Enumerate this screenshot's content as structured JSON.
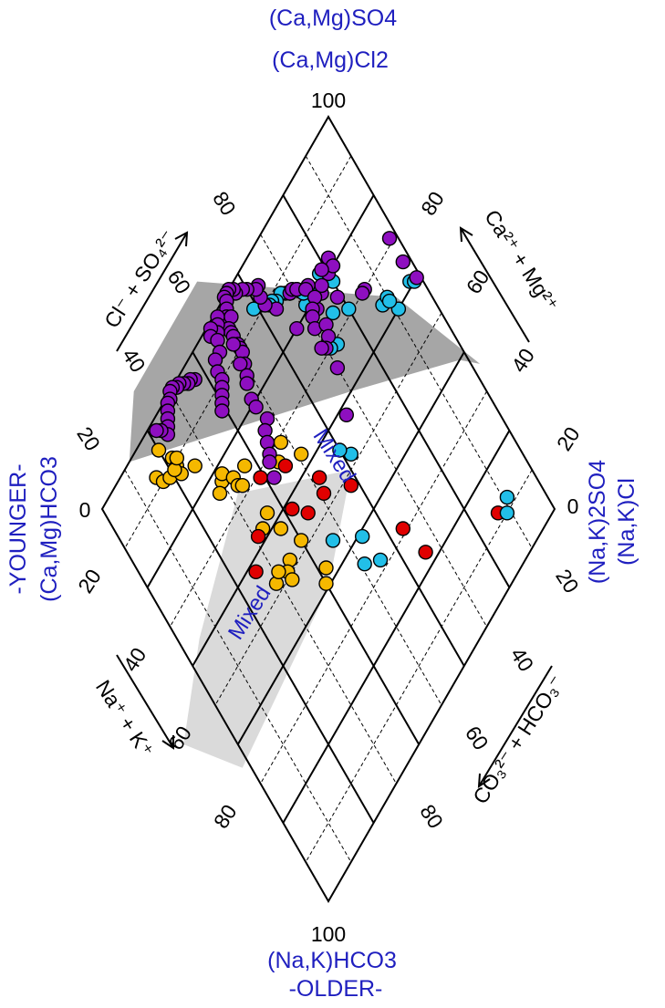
{
  "labels": {
    "top_line1": "(Ca,Mg)SO4",
    "top_line2": "(Ca,Mg)Cl2",
    "top_value": "100",
    "bottom_value": "100",
    "bottom_line1": "(Na,K)HCO3",
    "bottom_line2": "-OLDER-",
    "left_line1": "-YOUNGER-",
    "left_line2": "(Ca,Mg)HCO3",
    "left_value": "0",
    "right_line1": "(Na,K)2SO4",
    "right_line2": "(Na,K)Cl",
    "right_value": "0",
    "mixed_upper": "Mixed",
    "mixed_lower": "Mixed",
    "axis_upper_left": "Cl⁻ + SO₄²⁻",
    "axis_upper_right": "Ca²⁺ + Mg²⁺",
    "axis_lower_left": "Na⁺ + K⁺",
    "axis_lower_right": "CO₃²⁻ + HCO₃⁻",
    "ticks": [
      "20",
      "40",
      "60",
      "80"
    ]
  },
  "colors": {
    "red": "#e00000",
    "cyan": "#22bfe8",
    "yellow": "#f5b800",
    "purple": "#8e0fc0",
    "light_zone": "#dadada",
    "dark_zone": "#a6a6a6",
    "label_blue": "#1f1fbf"
  },
  "chart_data": {
    "type": "scatter",
    "diagram": "piper-diamond",
    "title": "",
    "axes": {
      "upper_left": {
        "label": "Cl⁻ + SO₄²⁻",
        "range": [
          0,
          100
        ]
      },
      "upper_right": {
        "label": "Ca²⁺ + Mg²⁺",
        "range": [
          0,
          100
        ]
      },
      "lower_left": {
        "label": "Na⁺ + K⁺",
        "range": [
          0,
          100
        ]
      },
      "lower_right": {
        "label": "CO₃²⁻ + HCO₃⁻",
        "range": [
          0,
          100
        ]
      }
    },
    "grid": true,
    "series": [
      {
        "color_key": "yellow",
        "points": [
          [
            5,
            80
          ],
          [
            8,
            84
          ],
          [
            10,
            83
          ],
          [
            11,
            81
          ],
          [
            9,
            78
          ],
          [
            11,
            78
          ],
          [
            13,
            78
          ],
          [
            15,
            74
          ],
          [
            11,
            79
          ],
          [
            10,
            77
          ],
          [
            23,
            70
          ],
          [
            24,
            72
          ],
          [
            22,
            69
          ],
          [
            25,
            67
          ],
          [
            27,
            67
          ],
          [
            26,
            63
          ],
          [
            28,
            66
          ],
          [
            37,
            64
          ],
          [
            38,
            67
          ],
          [
            42,
            63
          ],
          [
            31,
            52
          ],
          [
            33,
            55
          ],
          [
            37,
            49
          ],
          [
            48,
            65
          ],
          [
            49,
            67
          ],
          [
            48,
            71
          ],
          [
            47,
            69
          ],
          [
            51,
            67
          ],
          [
            48,
            60
          ],
          [
            57,
            58
          ],
          [
            59,
            60
          ]
        ]
      },
      {
        "color_key": "red",
        "points": [
          [
            88,
            13
          ],
          [
            77,
            34
          ],
          [
            69,
            36
          ],
          [
            52,
            42
          ],
          [
            44,
            48
          ],
          [
            47,
            49
          ],
          [
            46,
            55
          ],
          [
            42,
            58
          ],
          [
            35,
            54
          ],
          [
            31,
            61
          ],
          [
            38,
            69
          ],
          [
            42,
            74
          ]
        ]
      },
      {
        "color_key": "cyan",
        "points": [
          [
            88,
            9
          ],
          [
            90,
            11
          ],
          [
            55,
            53
          ],
          [
            68,
            45
          ],
          [
            65,
            49
          ],
          [
            61,
            46
          ],
          [
            48,
            38
          ],
          [
            45,
            40
          ],
          [
            31,
            27
          ],
          [
            30,
            29
          ],
          [
            36,
            12
          ],
          [
            36,
            10
          ],
          [
            40,
            9
          ],
          [
            39,
            3
          ],
          [
            40,
            2
          ],
          [
            37,
            10
          ],
          [
            29,
            20
          ],
          [
            22,
            20
          ],
          [
            26,
            24
          ],
          [
            18,
            22
          ],
          [
            18,
            26
          ],
          [
            19,
            29
          ],
          [
            17,
            28
          ],
          [
            15,
            29
          ],
          [
            14,
            31
          ],
          [
            13,
            32
          ],
          [
            12,
            33
          ],
          [
            12,
            35
          ],
          [
            11,
            36
          ],
          [
            11,
            37
          ],
          [
            10,
            38
          ],
          [
            9,
            39
          ],
          [
            8,
            41
          ]
        ]
      },
      {
        "color_key": "purple",
        "points": [
          [
            40,
            1
          ],
          [
            29,
            2
          ],
          [
            35,
            2
          ],
          [
            14,
            31
          ],
          [
            14,
            30
          ],
          [
            15,
            29
          ],
          [
            22,
            27
          ],
          [
            21,
            24
          ],
          [
            25,
            21
          ],
          [
            30,
            14
          ],
          [
            30,
            15
          ],
          [
            18,
            18
          ],
          [
            20,
            20
          ],
          [
            20,
            18
          ],
          [
            18,
            21
          ],
          [
            20,
            23
          ],
          [
            17,
            26
          ],
          [
            17,
            27
          ],
          [
            20,
            26
          ],
          [
            21,
            28
          ],
          [
            22,
            29
          ],
          [
            24,
            30
          ],
          [
            26,
            27
          ],
          [
            28,
            28
          ],
          [
            29,
            30
          ],
          [
            34,
            30
          ],
          [
            42,
            34
          ],
          [
            28,
            31
          ],
          [
            20,
            34
          ],
          [
            13,
            36
          ],
          [
            10,
            38
          ],
          [
            8,
            38
          ],
          [
            6,
            37
          ],
          [
            6,
            38
          ],
          [
            4,
            40
          ],
          [
            3,
            41
          ],
          [
            2,
            43
          ],
          [
            1,
            43
          ],
          [
            0,
            44
          ],
          [
            0,
            45
          ],
          [
            0,
            46
          ],
          [
            1,
            46
          ],
          [
            2,
            47
          ],
          [
            3,
            48
          ],
          [
            4,
            47
          ],
          [
            5,
            49
          ],
          [
            6,
            49
          ],
          [
            7,
            49
          ],
          [
            9,
            49
          ],
          [
            10,
            49
          ],
          [
            11,
            49
          ],
          [
            13,
            50
          ],
          [
            8,
            50
          ],
          [
            12,
            51
          ],
          [
            15,
            51
          ],
          [
            16,
            52
          ],
          [
            19,
            53
          ],
          [
            21,
            53
          ],
          [
            25,
            52
          ],
          [
            26,
            54
          ],
          [
            28,
            55
          ],
          [
            30,
            56
          ],
          [
            31,
            57
          ],
          [
            34,
            58
          ],
          [
            1,
            50
          ],
          [
            2,
            51
          ],
          [
            3,
            52
          ],
          [
            1,
            53
          ],
          [
            2,
            54
          ],
          [
            4,
            53
          ],
          [
            6,
            54
          ],
          [
            6,
            56
          ],
          [
            8,
            57
          ],
          [
            10,
            57
          ],
          [
            11,
            58
          ],
          [
            12,
            59
          ],
          [
            13,
            60
          ],
          [
            14,
            61
          ],
          [
            4,
            63
          ],
          [
            3,
            64
          ],
          [
            3,
            65
          ],
          [
            2,
            66
          ],
          [
            1,
            67
          ],
          [
            1,
            68
          ],
          [
            0,
            69
          ],
          [
            0,
            70
          ],
          [
            1,
            71
          ],
          [
            1,
            72
          ],
          [
            2,
            73
          ],
          [
            3,
            74
          ],
          [
            4,
            75
          ],
          [
            5,
            76
          ],
          [
            3,
            77
          ],
          [
            2,
            78
          ]
        ]
      }
    ]
  }
}
